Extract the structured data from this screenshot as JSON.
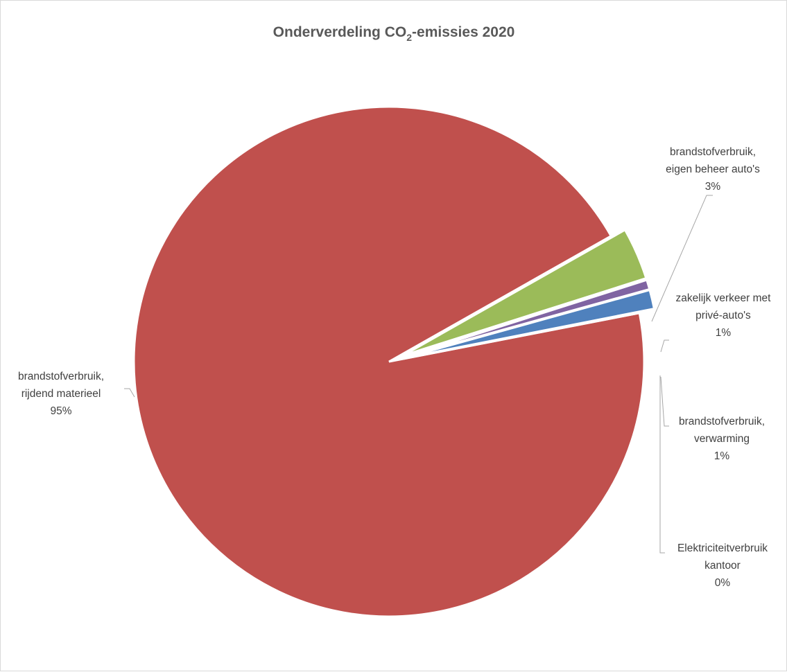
{
  "chart_data": {
    "type": "pie",
    "title_main": "Onderverdeling CO",
    "title_sub": "2",
    "title_rest": "-emissies 2020",
    "slices": [
      {
        "name": "brandstofverbruik, rijdend materieel",
        "label_lines": [
          "brandstofverbruik,",
          "rijdend materieel"
        ],
        "percent_label": "95%",
        "value": 94.9,
        "color": "#C0504D",
        "exploded": false
      },
      {
        "name": "brandstofverbruik, eigen beheer auto's",
        "label_lines": [
          "brandstofverbruik,",
          "eigen beheer auto's"
        ],
        "percent_label": "3%",
        "value": 3.3,
        "color": "#9BBB59",
        "exploded": true
      },
      {
        "name": "zakelijk verkeer met privé-auto's",
        "label_lines": [
          "zakelijk verkeer met",
          "privé-auto's"
        ],
        "percent_label": "1%",
        "value": 0.6,
        "color": "#8064A2",
        "exploded": true
      },
      {
        "name": "brandstofverbruik, verwarming",
        "label_lines": [
          "brandstofverbruik,",
          "verwarming"
        ],
        "percent_label": "1%",
        "value": 1.2,
        "color": "#4F81BD",
        "exploded": true
      },
      {
        "name": "Elektriciteitverbruik kantoor",
        "label_lines": [
          "Elektriciteitverbruik",
          "kantoor"
        ],
        "percent_label": "0%",
        "value": 0.05,
        "color": "#F79646",
        "exploded": true
      }
    ]
  }
}
